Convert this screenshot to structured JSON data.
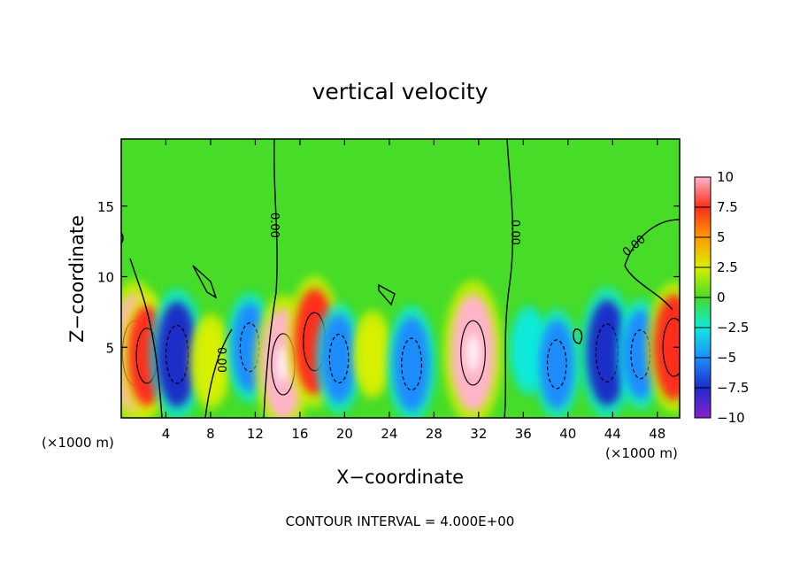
{
  "chart_data": {
    "type": "heatmap",
    "title": "vertical velocity",
    "xlabel": "X−coordinate",
    "ylabel": "Z−coordinate",
    "x_unit_left": "(×1000 m)",
    "x_unit_right": "(×1000 m)",
    "note": "CONTOUR INTERVAL = 4.000E+00",
    "xlim": [
      0,
      50
    ],
    "ylim": [
      0,
      19.75
    ],
    "x_ticks": [
      4,
      8,
      12,
      16,
      20,
      24,
      28,
      32,
      36,
      40,
      44,
      48
    ],
    "y_ticks": [
      5,
      10,
      15
    ],
    "colorbar": {
      "range": [
        -10,
        10
      ],
      "tick_values": [
        10,
        7.5,
        5,
        2.5,
        0,
        -2.5,
        -5,
        -7.5,
        -10
      ],
      "tick_labels": [
        "10",
        "7.5",
        "5",
        "2.5",
        "0",
        "−2.5",
        "−5",
        "−7.5",
        "−10"
      ]
    },
    "contour_labels": [
      "0.00",
      "0.00",
      "0.00",
      "0.00"
    ],
    "cells": [
      {
        "x": 1.2,
        "z": 4.6,
        "w": 10
      },
      {
        "x": 2.3,
        "z": 4.4,
        "w": 7
      },
      {
        "x": 5.0,
        "z": 4.5,
        "w": -8
      },
      {
        "x": 8.0,
        "z": 4.0,
        "w": 3
      },
      {
        "x": 11.5,
        "z": 5.0,
        "w": -5
      },
      {
        "x": 14.5,
        "z": 3.8,
        "w": 9
      },
      {
        "x": 17.3,
        "z": 5.4,
        "w": 8
      },
      {
        "x": 19.5,
        "z": 4.2,
        "w": -5
      },
      {
        "x": 22.5,
        "z": 4.5,
        "w": 2
      },
      {
        "x": 26.0,
        "z": 3.8,
        "w": -6
      },
      {
        "x": 31.5,
        "z": 4.6,
        "w": 10
      },
      {
        "x": 36.5,
        "z": 4.8,
        "w": -2
      },
      {
        "x": 39.0,
        "z": 3.8,
        "w": -5
      },
      {
        "x": 43.5,
        "z": 4.6,
        "w": -8
      },
      {
        "x": 46.5,
        "z": 4.5,
        "w": -5
      },
      {
        "x": 49.5,
        "z": 5.0,
        "w": 8
      }
    ]
  }
}
